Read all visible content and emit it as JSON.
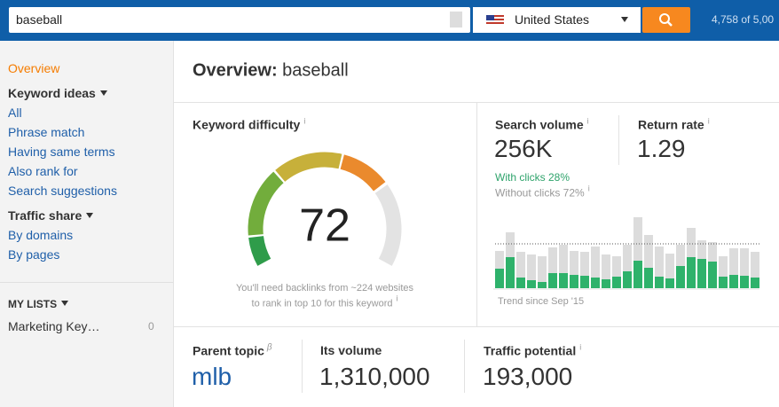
{
  "search": {
    "query": "baseball",
    "country": "United States",
    "count_text": "4,758 of 5,00"
  },
  "sidebar": {
    "overview": "Overview",
    "keyword_ideas": {
      "title": "Keyword ideas",
      "items": [
        "All",
        "Phrase match",
        "Having same terms",
        "Also rank for",
        "Search suggestions"
      ]
    },
    "traffic_share": {
      "title": "Traffic share",
      "items": [
        "By domains",
        "By pages"
      ]
    },
    "my_lists": {
      "title": "MY LISTS",
      "items": [
        {
          "name": "Marketing Key…",
          "count": 0
        }
      ]
    }
  },
  "header": {
    "label": "Overview:",
    "keyword": "baseball"
  },
  "difficulty": {
    "title": "Keyword difficulty",
    "value": 72,
    "note": [
      "You'll need backlinks from ~224 websites",
      "to rank in top 10 for this keyword"
    ]
  },
  "volume": {
    "title": "Search volume",
    "value": "256K",
    "with_clicks": "With clicks 28%",
    "without_clicks": "Without clicks 72%"
  },
  "return_rate": {
    "title": "Return rate",
    "value": "1.29"
  },
  "trend": {
    "type": "bar",
    "caption": "Trend since Sep '15",
    "totals": [
      42,
      63,
      41,
      38,
      36,
      46,
      49,
      42,
      41,
      47,
      38,
      36,
      49,
      80,
      60,
      47,
      39,
      49,
      68,
      54,
      52,
      36,
      45,
      45,
      41
    ],
    "clicks": [
      22,
      35,
      12,
      9,
      7,
      17,
      17,
      15,
      14,
      12,
      10,
      13,
      19,
      31,
      23,
      13,
      11,
      25,
      35,
      33,
      30,
      13,
      15,
      14,
      12
    ],
    "total_color": "#dcdcdc",
    "clicks_color": "#2eb26b",
    "reference": 50
  },
  "bottom": [
    {
      "title": "Parent topic",
      "value": "mlb"
    },
    {
      "title": "Its volume",
      "value": "1,310,000"
    },
    {
      "title": "Traffic potential",
      "value": "193,000"
    }
  ]
}
